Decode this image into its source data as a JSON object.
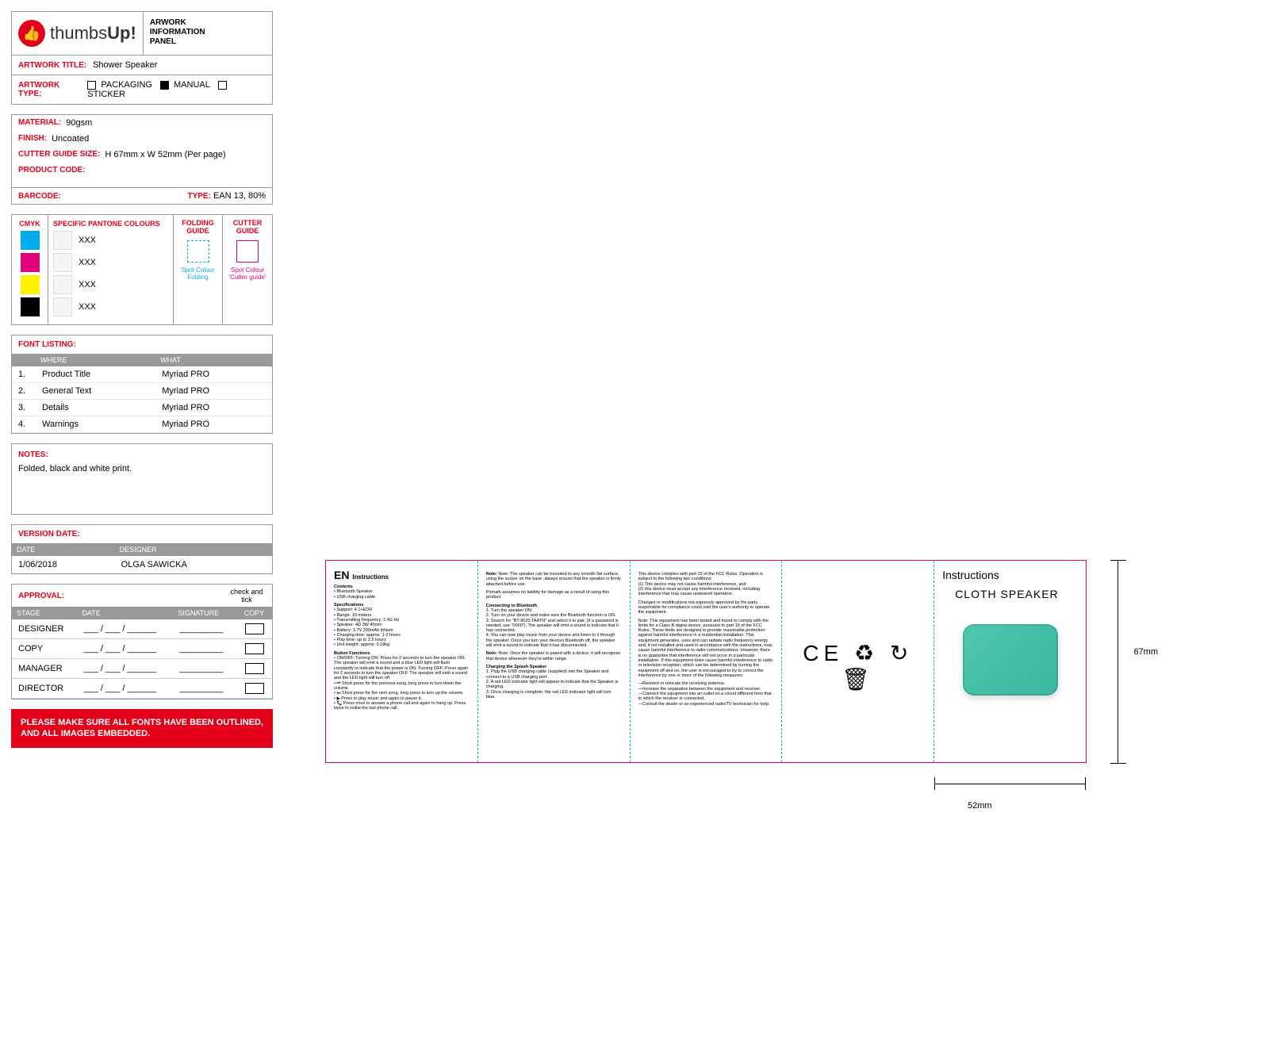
{
  "brand": {
    "name_light": "thumbs",
    "name_bold": "Up!",
    "panel_label": "ARWORK INFORMATION PANEL"
  },
  "artwork": {
    "title_label": "ARTWORK TITLE:",
    "title": "Shower Speaker",
    "type_label": "ARTWORK TYPE:",
    "types": [
      "PACKAGING",
      "MANUAL",
      "STICKER"
    ],
    "selected_type": "MANUAL"
  },
  "material": {
    "material_label": "MATERIAL:",
    "material": "90gsm",
    "finish_label": "FINISH:",
    "finish": "Uncoated",
    "cutter_label": "CUTTER GUIDE SIZE:",
    "cutter": "H 67mm x W 52mm (Per page)",
    "product_code_label": "PRODUCT CODE:",
    "product_code": "",
    "barcode_label": "BARCODE:",
    "barcode": "",
    "type_label": "TYPE:",
    "type": "EAN 13, 80%"
  },
  "colors": {
    "cmyk_label": "CMYK",
    "cmyk": [
      "#00aeef",
      "#e3007b",
      "#fff200",
      "#000000"
    ],
    "pantone_label": "SPECIFIC PANTONE COLOURS",
    "pantone": [
      "XXX",
      "XXX",
      "XXX",
      "XXX"
    ],
    "folding_label": "FOLDING GUIDE",
    "folding_spot": "Spot Colour Folding",
    "cutter_label": "CUTTER GUIDE",
    "cutter_spot": "Spot Colour 'Cutter guide'",
    "folding_color": "#00aeef",
    "cutter_color": "#e3007b"
  },
  "fonts": {
    "header": "FONT LISTING:",
    "col1": "WHERE",
    "col2": "WHAT",
    "rows": [
      [
        "1.",
        "Product Title",
        "Myriad PRO"
      ],
      [
        "2.",
        "General Text",
        "Myriad PRO"
      ],
      [
        "3.",
        "Details",
        "Myriad PRO"
      ],
      [
        "4.",
        "Warnings",
        "Myriad PRO"
      ]
    ]
  },
  "notes": {
    "header": "NOTES:",
    "text": "Folded, black and white print."
  },
  "version": {
    "header": "VERSION DATE:",
    "col1": "DATE",
    "col2": "DESIGNER",
    "date": "1/06/2018",
    "designer": "OLGA SAWICKA"
  },
  "approval": {
    "header": "APPROVAL:",
    "tick_label": "check and tick",
    "col1": "STAGE",
    "col2": "DATE",
    "col3": "SIGNATURE",
    "col4": "COPY",
    "rows": [
      "DESIGNER",
      "COPY",
      "MANAGER",
      "DIRECTOR"
    ],
    "date_placeholder": "___ / ___ / ______",
    "sig_placeholder": "_________"
  },
  "warning": "PLEASE MAKE SURE ALL FONTS HAVE BEEN OUTLINED, AND ALL IMAGES EMBEDDED.",
  "spread": {
    "dim_h": "67mm",
    "dim_w": "52mm",
    "p1": {
      "lang": "EN",
      "instr": "Instructions",
      "contents_h": "Contents",
      "contents": "• Bluetooth Speaker\n• USB charging cable",
      "specs_h": "Specifications",
      "specs": "• Support: 4.1+EDR\n• Range: 10 meters\n• Transmitting frequency: 2.4G Hz\n• Speaker: 4Ω 3W 40mm\n• Battery: 3.7V 200mAh lithium\n• Charging time: approx. 1-2 hours\n• Play time: up to 2.5 hours\n• Unit weight: approx. 0.18kg",
      "btn_h": "Button Functions",
      "btn": "• ON/OFF: Turning ON: Press for 2 seconds to turn the speaker ON. The speaker will emit a sound and a blue LED light will flash constantly to indicate that the power is ON. Turning OFF: Press again for 2 seconds to turn the speaker OFF. The speaker will emit a sound and the LED light will turn off.\n• ⏮ Short press for the previous song, long press to turn down the volume.\n• ⏭ Short press for the next song, long press to turn up the volume.\n• ▶ Press to play music and again to pause it.\n• 📞 Press once to answer a phone call and again to hang up. Press twice to redial the last phone call."
    },
    "p2": {
      "note1": "Note: The speaker can be mounted to any smooth flat surface, using the sucker on the base -always ensure that the speaker is firmly attached before use.",
      "note2": "Primark assumes no liability for damage as a result of using this product.",
      "connect_h": "Connecting to Bluetooth",
      "connect": "1. Turn the speaker ON.\n2. Turn on your device and make sure the Bluetooth function is ON.\n3. Search for \"BT-8020 TAATN\" and select it to pair. (If a password is needed, use \"0000\"). The speaker will emit a sound to indicate that it has connected.\n4. You can now play music from your device and listen to it through the speaker. Once you turn your devices Bluetooth off, the speaker will emit a sound to indicate that it has disconnected.",
      "note3": "Note: Once the speaker is paired with a device, it will recognise that device whenever they're within range.",
      "charge_h": "Charging the Splash Speaker",
      "charge": "1. Plug the USB charging cable (supplied) into the Speaker and connect to a USB charging port.\n2. A red LED indicator light will appear to indicate that the Speaker is charging.\n3. Once charging is complete, the red LED indicator light will turn blue."
    },
    "p3": {
      "fcc1": "This device complies with part 15 of the FCC Rules. Operation is subject to the following two conditions:\n(1) This device may not cause harmful interference, and\n(2) this device must accept any interference received, including interference that may cause undesired operation.",
      "fcc2": "Changes or modifications not expressly approved by the party responsible for compliance could void the user's authority to operate the equipment.",
      "fcc3": "Note: This equipment has been tested and found to comply with the limits for a Class B digital device, pursuant to part 15 of the FCC Rules. These limits are designed to provide reasonable protection against harmful interference in a residential installation. This equipment generates, uses and can radiate radio frequency energy and, if not installed and used in accordance with the instructions, may cause harmful interference to radio communications. However, there is no guarantee that interference will not occur in a particular installation. If this equipment does cause harmful interference to radio or television reception, which can be determined by turning the equipment off and on, the user is encouraged to try to correct the interference by one or more of the following measures:",
      "fcc4": "—Reorient or relocate the receiving antenna.\n—Increase the separation between the equipment and receiver.\n—Connect the equipment into an outlet on a circuit different from that to which the receiver is connected.\n—Consult the dealer or an experienced radio/TV technician for help."
    },
    "p4": {
      "symbols": "CE ♻ ↻ 🗑"
    },
    "p5": {
      "title": "Instructions",
      "product": "CLOTH SPEAKER"
    }
  }
}
